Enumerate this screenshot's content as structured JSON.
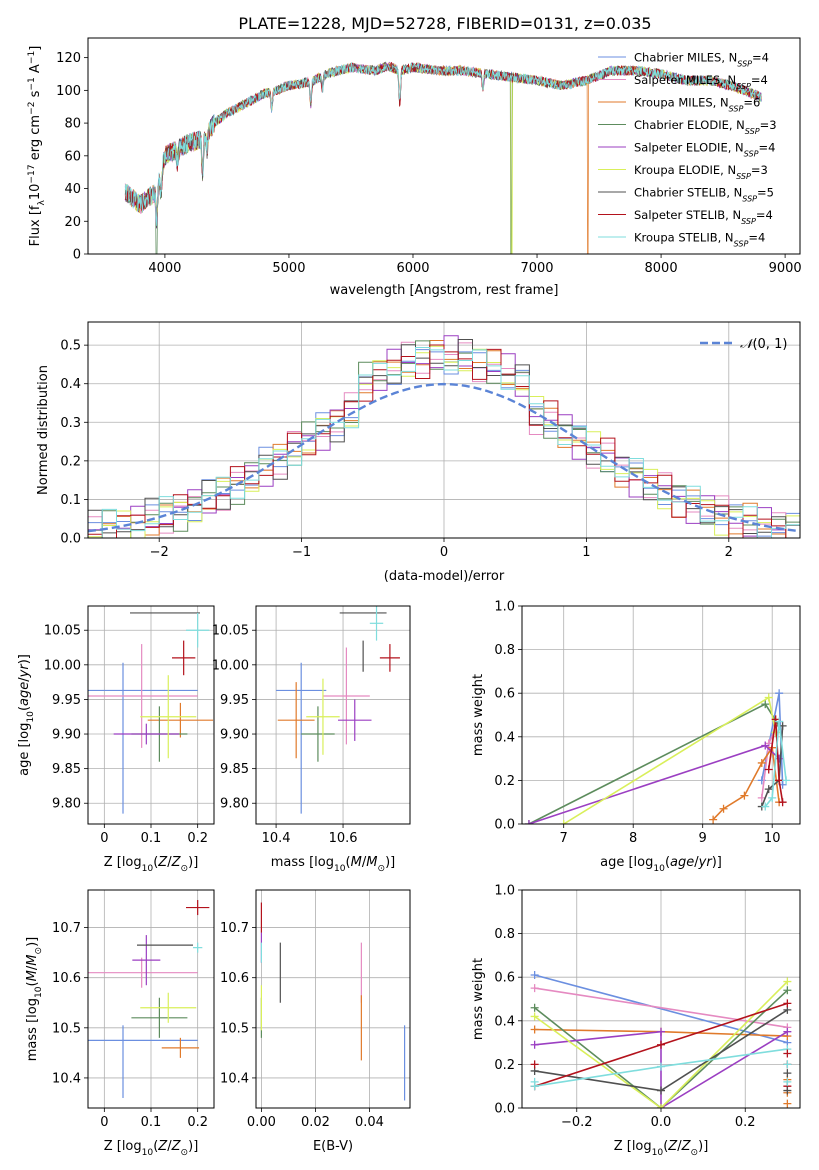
{
  "figure": {
    "title": "PLATE=1228, MJD=52728, FIBERID=0131, z=0.035"
  },
  "colors": {
    "Chabrier MILES": "#6b8fe0",
    "Salpeter MILES": "#e58ac1",
    "Kroupa MILES": "#e07a2b",
    "Chabrier ELODIE": "#5d8c5d",
    "Salpeter ELODIE": "#9b3fc2",
    "Kroupa ELODIE": "#d9ef5a",
    "Chabrier STELIB": "#505050",
    "Salpeter STELIB": "#b3121c",
    "Kroupa STELIB": "#7fdddd",
    "normal": "#5b84d6"
  },
  "chart_data": [
    {
      "id": "spectrum",
      "type": "line",
      "title": "PLATE=1228, MJD=52728, FIBERID=0131, z=0.035",
      "xlabel": "wavelength [Angstrom, rest frame]",
      "ylabel_parts": [
        "Flux [f",
        "λ",
        "10",
        "−17",
        " erg cm",
        "−2",
        " s",
        "−1",
        " A",
        "−1",
        "]"
      ],
      "xlim": [
        3380,
        9120
      ],
      "ylim": [
        0,
        132
      ],
      "xticks": [
        4000,
        5000,
        6000,
        7000,
        8000,
        9000
      ],
      "yticks": [
        0,
        20,
        40,
        60,
        80,
        100,
        120
      ],
      "grid": false,
      "legend_position": "right",
      "anchors_x": [
        3680,
        3800,
        3930,
        4000,
        4100,
        4200,
        4300,
        4400,
        4500,
        4600,
        4700,
        4800,
        4900,
        5000,
        5100,
        5200,
        5300,
        5400,
        5500,
        5600,
        5700,
        5800,
        5900,
        6000,
        6200,
        6400,
        6600,
        6800,
        7000,
        7200,
        7400,
        7600,
        7800,
        8000,
        8200,
        8400,
        8600,
        8800
      ],
      "anchors_y": [
        38,
        30,
        38,
        60,
        64,
        68,
        70,
        80,
        86,
        90,
        94,
        98,
        100,
        103,
        104,
        106,
        110,
        112,
        114,
        113,
        112,
        115,
        112,
        114,
        112,
        112,
        110,
        108,
        106,
        103,
        106,
        112,
        112,
        110,
        106,
        106,
        102,
        96
      ],
      "absorption_features": [
        {
          "x": 3934,
          "depth": 18
        },
        {
          "x": 3969,
          "depth": 14
        },
        {
          "x": 4101,
          "depth": 8
        },
        {
          "x": 4304,
          "depth": 22
        },
        {
          "x": 4340,
          "depth": 10
        },
        {
          "x": 4861,
          "depth": 10
        },
        {
          "x": 5175,
          "depth": 14
        },
        {
          "x": 5270,
          "depth": 8
        },
        {
          "x": 5893,
          "depth": 20
        },
        {
          "x": 6563,
          "depth": 10
        }
      ],
      "series": [
        {
          "name": "Chabrier MILES",
          "n_ssp": 4
        },
        {
          "name": "Salpeter MILES",
          "n_ssp": 4
        },
        {
          "name": "Kroupa MILES",
          "n_ssp": 6
        },
        {
          "name": "Chabrier ELODIE",
          "n_ssp": 3
        },
        {
          "name": "Salpeter ELODIE",
          "n_ssp": 4
        },
        {
          "name": "Kroupa ELODIE",
          "n_ssp": 3
        },
        {
          "name": "Chabrier STELIB",
          "n_ssp": 5
        },
        {
          "name": "Salpeter STELIB",
          "n_ssp": 4
        },
        {
          "name": "Kroupa STELIB",
          "n_ssp": 4
        }
      ],
      "legend_ssp_label": "N",
      "legend_ssp_sub": "SSP",
      "drops": [
        {
          "series": "Chabrier ELODIE",
          "x_start": 3925,
          "x_end": 3936,
          "to": 0
        },
        {
          "series": "Kroupa ELODIE",
          "x_start": 6790,
          "x_end": 6800,
          "to": 0
        },
        {
          "series": "Chabrier ELODIE",
          "x_start": 6785,
          "x_end": 6796,
          "to": 0
        },
        {
          "series": "Kroupa MILES",
          "x_start": 7405,
          "x_end": 7414,
          "to": 0
        }
      ]
    },
    {
      "id": "residuals",
      "type": "step-histogram",
      "xlabel": "(data-model)/error",
      "ylabel": "Normed distribution",
      "xlim": [
        -2.5,
        2.5
      ],
      "ylim": [
        0,
        0.56
      ],
      "xticks": [
        -2,
        -1,
        0,
        1,
        2
      ],
      "xtick_labels": [
        "−2",
        "−1",
        "0",
        "1",
        "2"
      ],
      "yticks": [
        0,
        0.1,
        0.2,
        0.3,
        0.4,
        0.5
      ],
      "grid": true,
      "bin_start": -2.5,
      "bin_width": 0.1,
      "normal_curve": {
        "label_parts": [
          "𝒩",
          "(0, 1)"
        ],
        "mu": 0,
        "sigma": 1
      },
      "legend_position": "top-right"
    },
    {
      "id": "age_vs_Z",
      "type": "errorbar",
      "xlabel": "Z [log10(Z/Z⊙)]",
      "ylabel": "age  [log10(age/yr)]",
      "xlim": [
        -0.035,
        0.235
      ],
      "ylim": [
        9.77,
        10.085
      ],
      "xticks": [
        0,
        0.1,
        0.2
      ],
      "yticks": [
        9.8,
        9.85,
        9.9,
        9.95,
        10.0,
        10.05
      ],
      "grid": true,
      "points": [
        {
          "series": "Chabrier MILES",
          "x": 0.04,
          "xerr": 0.16,
          "y": 9.963,
          "yerr": 0.04,
          "ylo": 9.785
        },
        {
          "series": "Salpeter MILES",
          "x": 0.08,
          "xerr": 0.12,
          "y": 9.955,
          "yerr": 0.075
        },
        {
          "series": "Kroupa MILES",
          "x": 0.163,
          "xerr": 0.07,
          "y": 9.92,
          "yerr": 0.025
        },
        {
          "series": "Chabrier ELODIE",
          "x": 0.118,
          "xerr": 0.06,
          "y": 9.9,
          "yerr": 0.04
        },
        {
          "series": "Salpeter ELODIE",
          "x": 0.09,
          "xerr": 0.07,
          "y": 9.9,
          "yerr": 0.015
        },
        {
          "series": "Kroupa ELODIE",
          "x": 0.137,
          "xerr": 0.06,
          "y": 9.925,
          "yerr": 0.06
        },
        {
          "series": "Chabrier STELIB",
          "x": 0.13,
          "xerr": 0.075,
          "y": 10.075,
          "yerr": 0.0
        },
        {
          "series": "Salpeter STELIB",
          "x": 0.17,
          "xerr": 0.025,
          "y": 10.01,
          "yerr": 0.025
        },
        {
          "series": "Kroupa STELIB",
          "x": 0.2,
          "xerr": 0.025,
          "y": 10.05,
          "yerr": 0.025
        }
      ]
    },
    {
      "id": "age_vs_mass",
      "type": "errorbar",
      "xlabel": "mass [log10(M/M⊙)]",
      "xlim": [
        10.34,
        10.8
      ],
      "ylim": [
        9.77,
        10.085
      ],
      "xticks": [
        10.4,
        10.6
      ],
      "yticks": [
        9.8,
        9.85,
        9.9,
        9.95,
        10.0,
        10.05
      ],
      "grid": true,
      "points": [
        {
          "series": "Chabrier MILES",
          "x": 10.475,
          "xerr": 0.075,
          "y": 9.963,
          "yerr": 0.04,
          "ylo": 9.785
        },
        {
          "series": "Salpeter MILES",
          "x": 10.61,
          "xerr": 0.07,
          "y": 9.955,
          "yerr": 0.07
        },
        {
          "series": "Kroupa MILES",
          "x": 10.46,
          "xerr": 0.055,
          "y": 9.92,
          "yerr": 0.055
        },
        {
          "series": "Chabrier ELODIE",
          "x": 10.525,
          "xerr": 0.05,
          "y": 9.9,
          "yerr": 0.04
        },
        {
          "series": "Salpeter ELODIE",
          "x": 10.635,
          "xerr": 0.05,
          "y": 9.92,
          "yerr": 0.03
        },
        {
          "series": "Kroupa ELODIE",
          "x": 10.54,
          "xerr": 0.05,
          "y": 9.925,
          "yerr": 0.055
        },
        {
          "series": "Chabrier STELIB",
          "x": 10.66,
          "xerr": 0.07,
          "y": 10.075,
          "yerr": 0.0,
          "ylo2": 9.99,
          "yhi2": 10.035
        },
        {
          "series": "Salpeter STELIB",
          "x": 10.74,
          "xerr": 0.03,
          "y": 10.01,
          "yerr": 0.02
        },
        {
          "series": "Kroupa STELIB",
          "x": 10.7,
          "xerr": 0.02,
          "y": 10.06,
          "yerr": 0.025
        }
      ]
    },
    {
      "id": "massweight_vs_age",
      "type": "line",
      "xlabel": "age  [log10(age/yr)]",
      "ylabel": "mass weight",
      "xlim": [
        6.4,
        10.4
      ],
      "ylim": [
        0,
        1
      ],
      "xticks": [
        7,
        8,
        9,
        10
      ],
      "yticks": [
        0,
        0.2,
        0.4,
        0.6,
        0.8,
        1.0
      ],
      "grid": true,
      "series": [
        {
          "name": "Chabrier MILES",
          "x": [
            9.85,
            10.1,
            10.15
          ],
          "y": [
            0.2,
            0.6,
            0.18
          ]
        },
        {
          "name": "Salpeter MILES",
          "x": [
            9.85,
            9.95,
            10.1
          ],
          "y": [
            0.12,
            0.37,
            0.47
          ]
        },
        {
          "name": "Kroupa MILES",
          "x": [
            9.15,
            9.3,
            9.6,
            9.85,
            10.0,
            10.1
          ],
          "y": [
            0.02,
            0.07,
            0.13,
            0.28,
            0.35,
            0.1
          ]
        },
        {
          "name": "Chabrier ELODIE",
          "x": [
            6.5,
            9.9,
            10.1
          ],
          "y": [
            0.0,
            0.55,
            0.45
          ]
        },
        {
          "name": "Salpeter ELODIE",
          "x": [
            6.5,
            9.9,
            10.1
          ],
          "y": [
            0.0,
            0.36,
            0.3
          ]
        },
        {
          "name": "Kroupa ELODIE",
          "x": [
            7.0,
            9.95,
            10.05
          ],
          "y": [
            0.0,
            0.58,
            0.42
          ]
        },
        {
          "name": "Chabrier STELIB",
          "x": [
            9.85,
            9.95,
            10.1,
            10.15
          ],
          "y": [
            0.08,
            0.16,
            0.2,
            0.45
          ]
        },
        {
          "name": "Salpeter STELIB",
          "x": [
            9.95,
            10.05,
            10.1,
            10.15
          ],
          "y": [
            0.25,
            0.48,
            0.2,
            0.1
          ]
        },
        {
          "name": "Kroupa STELIB",
          "x": [
            9.9,
            10.0,
            10.1,
            10.2
          ],
          "y": [
            0.08,
            0.12,
            0.47,
            0.2
          ]
        }
      ]
    },
    {
      "id": "mass_vs_Z",
      "type": "errorbar",
      "xlabel": "Z [log10(Z/Z⊙)]",
      "ylabel": "mass [log10(M/M⊙)]",
      "xlim": [
        -0.035,
        0.235
      ],
      "ylim": [
        10.34,
        10.775
      ],
      "xticks": [
        0,
        0.1,
        0.2
      ],
      "yticks": [
        10.4,
        10.5,
        10.6,
        10.7
      ],
      "grid": true,
      "points": [
        {
          "series": "Chabrier MILES",
          "x": 0.04,
          "xerr": 0.16,
          "y": 10.475,
          "yerr": 0.03,
          "ylo": 10.36
        },
        {
          "series": "Salpeter MILES",
          "x": 0.08,
          "xerr": 0.12,
          "y": 10.61,
          "yerr": 0.03
        },
        {
          "series": "Kroupa MILES",
          "x": 0.163,
          "xerr": 0.04,
          "y": 10.46,
          "yerr": 0.02
        },
        {
          "series": "Chabrier ELODIE",
          "x": 0.118,
          "xerr": 0.06,
          "y": 10.52,
          "yerr": 0.04
        },
        {
          "series": "Salpeter ELODIE",
          "x": 0.09,
          "xerr": 0.03,
          "y": 10.635,
          "yerr": 0.05
        },
        {
          "series": "Kroupa ELODIE",
          "x": 0.137,
          "xerr": 0.06,
          "y": 10.54,
          "yerr": 0.03
        },
        {
          "series": "Chabrier STELIB",
          "x": 0.13,
          "xerr": 0.06,
          "y": 10.665,
          "yerr": 0.0
        },
        {
          "series": "Salpeter STELIB",
          "x": 0.2,
          "xerr": 0.025,
          "y": 10.74,
          "yerr": 0.015
        },
        {
          "series": "Kroupa STELIB",
          "x": 0.2,
          "xerr": 0.01,
          "y": 10.66,
          "yerr": 0.01
        }
      ]
    },
    {
      "id": "mass_vs_ebv",
      "type": "errorbar",
      "xlabel": "E(B-V)",
      "xlim": [
        -0.002,
        0.055
      ],
      "ylim": [
        10.34,
        10.775
      ],
      "xticks": [
        0.0,
        0.02,
        0.04
      ],
      "xtick_labels": [
        "0.00",
        "0.02",
        "0.04"
      ],
      "yticks": [
        10.4,
        10.5,
        10.6,
        10.7
      ],
      "grid": true,
      "points": [
        {
          "series": "Chabrier MILES",
          "x": 0.053,
          "xerr": 0,
          "y": 10.43,
          "yerr": 0.075
        },
        {
          "series": "Salpeter MILES",
          "x": 0.037,
          "xerr": 0,
          "y": 10.61,
          "yerr": 0.06
        },
        {
          "series": "Kroupa MILES",
          "x": 0.037,
          "xerr": 0,
          "y": 10.5,
          "yerr": 0.065
        },
        {
          "series": "Chabrier ELODIE",
          "x": 0.0,
          "xerr": 0,
          "y": 10.52,
          "yerr": 0.04
        },
        {
          "series": "Salpeter ELODIE",
          "x": 0.0,
          "xerr": 0,
          "y": 10.66,
          "yerr": 0.03
        },
        {
          "series": "Kroupa ELODIE",
          "x": 0.0,
          "xerr": 0,
          "y": 10.54,
          "yerr": 0.045
        },
        {
          "series": "Chabrier STELIB",
          "x": 0.007,
          "xerr": 0,
          "y": 10.61,
          "yerr": 0.06
        },
        {
          "series": "Salpeter STELIB",
          "x": 0.0,
          "xerr": 0,
          "y": 10.72,
          "yerr": 0.03
        },
        {
          "series": "Kroupa STELIB",
          "x": 0.0,
          "xerr": 0,
          "y": 10.65,
          "yerr": 0.02
        }
      ]
    },
    {
      "id": "massweight_vs_Z",
      "type": "line",
      "xlabel": "Z [log10(Z/Z⊙)]",
      "ylabel": "mass weight",
      "xlim": [
        -0.33,
        0.33
      ],
      "ylim": [
        0,
        1
      ],
      "xticks": [
        -0.2,
        0.0,
        0.2
      ],
      "xtick_labels": [
        "−0.2",
        "0.0",
        "0.2"
      ],
      "yticks": [
        0,
        0.2,
        0.4,
        0.6,
        0.8,
        1.0
      ],
      "grid": true,
      "series": [
        {
          "name": "Chabrier MILES",
          "x": [
            -0.3,
            0.3
          ],
          "y": [
            0.61,
            0.3
          ]
        },
        {
          "name": "Salpeter MILES",
          "x": [
            -0.3,
            0.3
          ],
          "y": [
            0.55,
            0.37
          ]
        },
        {
          "name": "Kroupa MILES",
          "x": [
            -0.3,
            0.0,
            0.3
          ],
          "y": [
            0.36,
            0.35,
            0.33
          ]
        },
        {
          "name": "Chabrier ELODIE",
          "x": [
            -0.3,
            0.0,
            0.3
          ],
          "y": [
            0.46,
            0.0,
            0.54
          ]
        },
        {
          "name": "Salpeter ELODIE",
          "x": [
            -0.3,
            0.0,
            0.0,
            0.3
          ],
          "y": [
            0.29,
            0.35,
            0.0,
            0.35
          ]
        },
        {
          "name": "Kroupa ELODIE",
          "x": [
            -0.3,
            0.0,
            0.3
          ],
          "y": [
            0.42,
            0.0,
            0.58
          ]
        },
        {
          "name": "Chabrier STELIB",
          "x": [
            -0.3,
            0.0,
            0.3
          ],
          "y": [
            0.17,
            0.08,
            0.45
          ]
        },
        {
          "name": "Salpeter STELIB",
          "x": [
            -0.3,
            0.0,
            0.3
          ],
          "y": [
            0.1,
            0.29,
            0.48
          ]
        },
        {
          "name": "Kroupa STELIB",
          "x": [
            -0.3,
            0.0,
            0.3
          ],
          "y": [
            0.1,
            0.19,
            0.27
          ]
        }
      ],
      "edge_ticks": [
        {
          "series": "Kroupa MILES",
          "x": 0.3,
          "y": [
            0.02,
            0.07,
            0.13
          ]
        },
        {
          "series": "Salpeter STELIB",
          "x": 0.3,
          "y": [
            0.1,
            0.2,
            0.25
          ]
        },
        {
          "series": "Chabrier STELIB",
          "x": 0.3,
          "y": [
            0.16,
            0.08
          ]
        },
        {
          "series": "Kroupa STELIB",
          "x": 0.3,
          "y": [
            0.12,
            0.2
          ]
        },
        {
          "series": "Salpeter STELIB",
          "x": -0.3,
          "y": [
            0.2
          ]
        },
        {
          "series": "Kroupa STELIB",
          "x": -0.3,
          "y": [
            0.12
          ]
        }
      ]
    }
  ]
}
